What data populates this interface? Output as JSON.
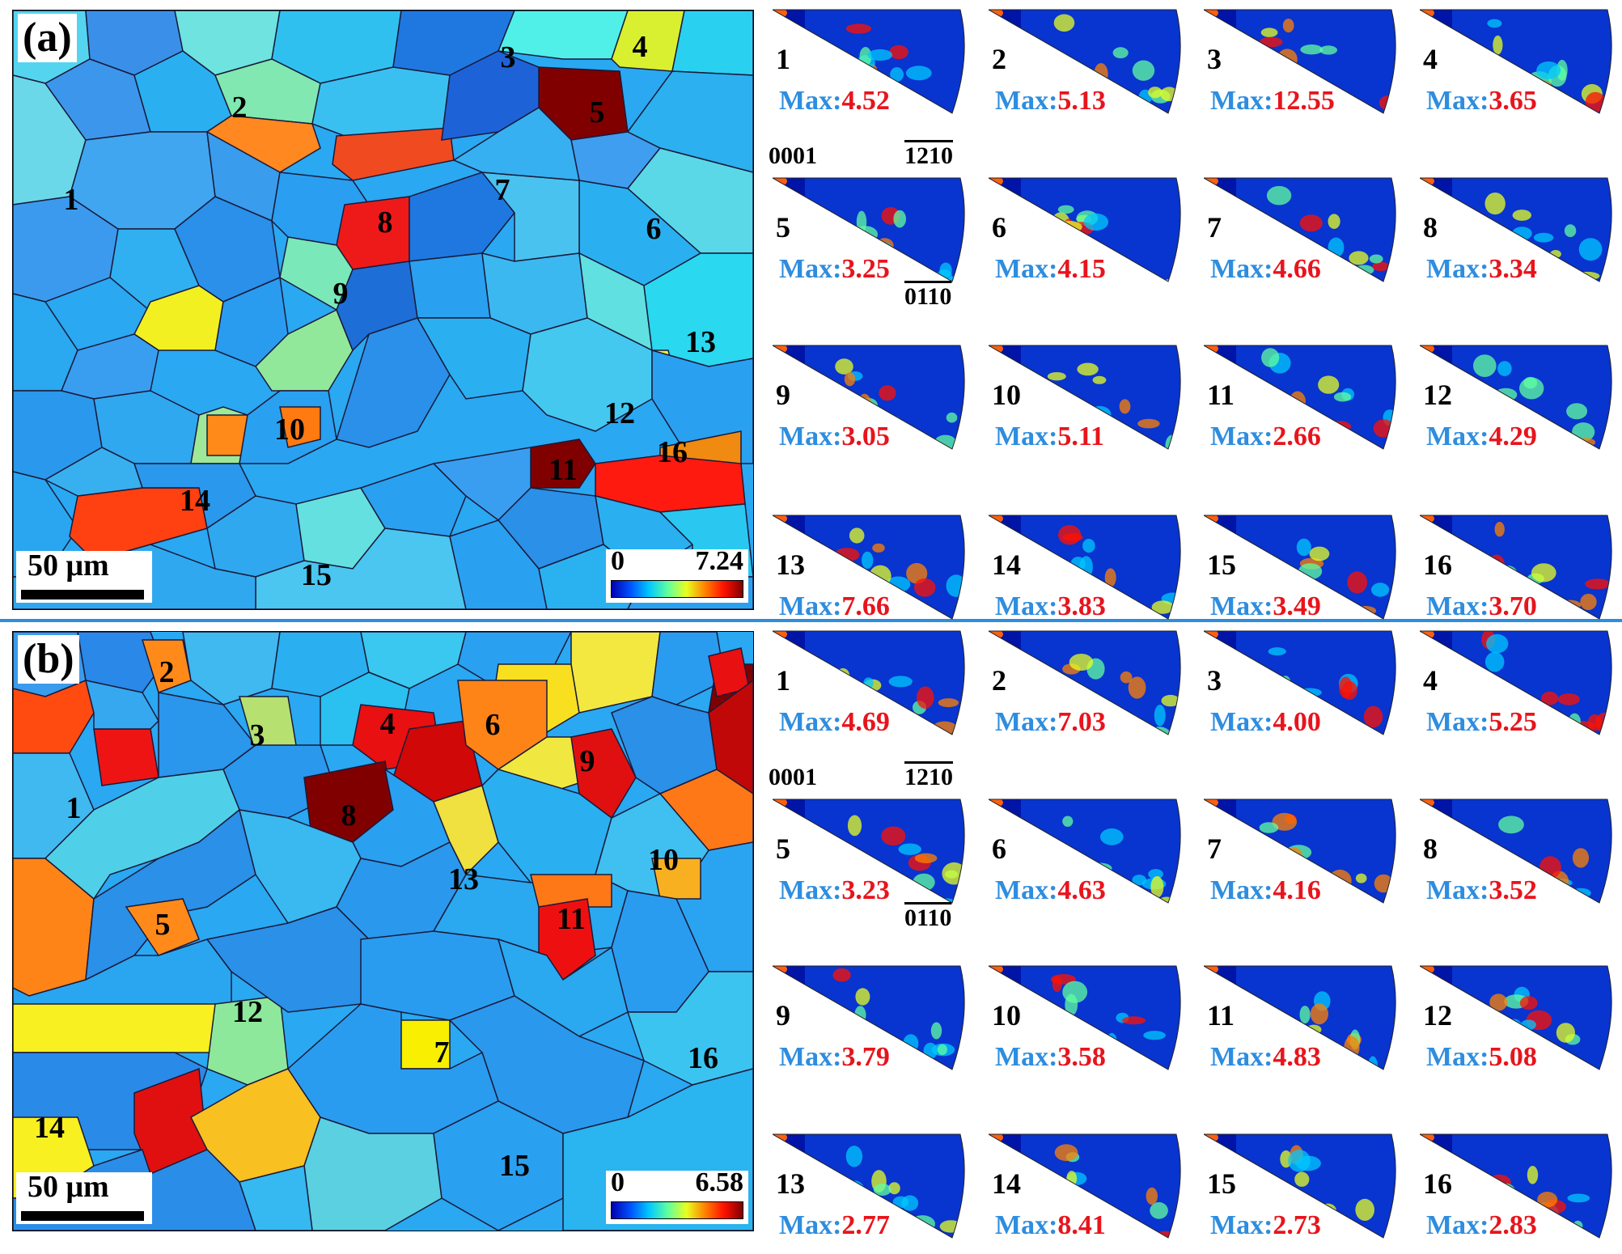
{
  "panels": [
    {
      "letter": "(a)",
      "scale_bar": "50 μm",
      "colorbar_min": "0",
      "colorbar_max": "7.24",
      "grain_labels": [
        "1",
        "2",
        "3",
        "4",
        "5",
        "6",
        "7",
        "8",
        "9",
        "10",
        "11",
        "12",
        "13",
        "14",
        "15",
        "16"
      ],
      "pole_figures": [
        {
          "num": "1",
          "max_label": "Max:",
          "max_value": "4.52"
        },
        {
          "num": "2",
          "max_label": "Max:",
          "max_value": "5.13"
        },
        {
          "num": "3",
          "max_label": "Max:",
          "max_value": "12.55"
        },
        {
          "num": "4",
          "max_label": "Max:",
          "max_value": "3.65"
        },
        {
          "num": "5",
          "max_label": "Max:",
          "max_value": "3.25"
        },
        {
          "num": "6",
          "max_label": "Max:",
          "max_value": "4.15"
        },
        {
          "num": "7",
          "max_label": "Max:",
          "max_value": "4.66"
        },
        {
          "num": "8",
          "max_label": "Max:",
          "max_value": "3.34"
        },
        {
          "num": "9",
          "max_label": "Max:",
          "max_value": "3.05"
        },
        {
          "num": "10",
          "max_label": "Max:",
          "max_value": "5.11"
        },
        {
          "num": "11",
          "max_label": "Max:",
          "max_value": "2.66"
        },
        {
          "num": "12",
          "max_label": "Max:",
          "max_value": "4.29"
        },
        {
          "num": "13",
          "max_label": "Max:",
          "max_value": "7.66"
        },
        {
          "num": "14",
          "max_label": "Max:",
          "max_value": "3.83"
        },
        {
          "num": "15",
          "max_label": "Max:",
          "max_value": "3.49"
        },
        {
          "num": "16",
          "max_label": "Max:",
          "max_value": "3.70"
        }
      ],
      "poles": {
        "basal": "0001",
        "a_axis": "1210",
        "m_axis": "0110"
      }
    },
    {
      "letter": "(b)",
      "scale_bar": "50 μm",
      "colorbar_min": "0",
      "colorbar_max": "6.58",
      "grain_labels": [
        "1",
        "2",
        "3",
        "4",
        "5",
        "6",
        "7",
        "8",
        "9",
        "10",
        "11",
        "12",
        "13",
        "14",
        "15",
        "16"
      ],
      "pole_figures": [
        {
          "num": "1",
          "max_label": "Max:",
          "max_value": "4.69"
        },
        {
          "num": "2",
          "max_label": "Max:",
          "max_value": "7.03"
        },
        {
          "num": "3",
          "max_label": "Max:",
          "max_value": "4.00"
        },
        {
          "num": "4",
          "max_label": "Max:",
          "max_value": "5.25"
        },
        {
          "num": "5",
          "max_label": "Max:",
          "max_value": "3.23"
        },
        {
          "num": "6",
          "max_label": "Max:",
          "max_value": "4.63"
        },
        {
          "num": "7",
          "max_label": "Max:",
          "max_value": "4.16"
        },
        {
          "num": "8",
          "max_label": "Max:",
          "max_value": "3.52"
        },
        {
          "num": "9",
          "max_label": "Max:",
          "max_value": "3.79"
        },
        {
          "num": "10",
          "max_label": "Max:",
          "max_value": "3.58"
        },
        {
          "num": "11",
          "max_label": "Max:",
          "max_value": "4.83"
        },
        {
          "num": "12",
          "max_label": "Max:",
          "max_value": "5.08"
        },
        {
          "num": "13",
          "max_label": "Max:",
          "max_value": "2.77"
        },
        {
          "num": "14",
          "max_label": "Max:",
          "max_value": "8.41"
        },
        {
          "num": "15",
          "max_label": "Max:",
          "max_value": "2.73"
        },
        {
          "num": "16",
          "max_label": "Max:",
          "max_value": "2.83"
        }
      ],
      "poles": {
        "basal": "0001",
        "a_axis": "1210",
        "m_axis": "0110"
      }
    }
  ],
  "colors": {
    "divider": "#2e8ddf",
    "max_label": "#2e8ddf",
    "max_value": "#e8141c"
  }
}
